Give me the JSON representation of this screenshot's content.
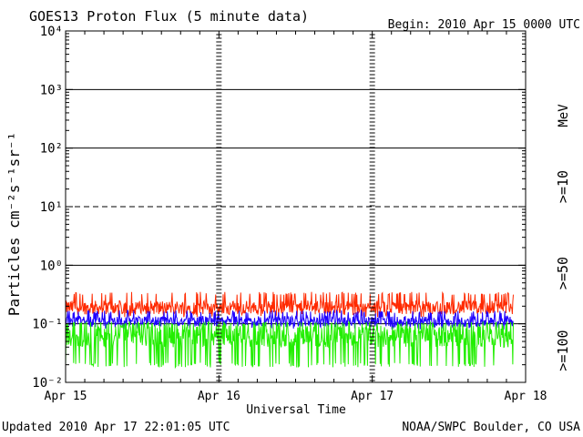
{
  "chart_data": {
    "type": "line",
    "title": "GOES13 Proton Flux (5 minute data)",
    "begin_label": "Begin: 2010 Apr 15 0000 UTC",
    "xlabel": "Universal Time",
    "ylabel": "Particles cm⁻²s⁻¹sr⁻¹",
    "y_scale": "log",
    "ylim": [
      0.01,
      10000
    ],
    "x_ticks": [
      "Apr 15",
      "Apr 16",
      "Apr 17",
      "Apr 18"
    ],
    "y_ticks": [
      "10⁻²",
      "10⁻¹",
      "10⁰",
      "10¹",
      "10²",
      "10³",
      "10⁴"
    ],
    "x_range_days": [
      0,
      3
    ],
    "data_end_day": 2.92,
    "threshold_lines": [
      {
        "value": 10,
        "style": "dashed"
      },
      {
        "value": 1000,
        "style": "solid"
      },
      {
        "value": 100,
        "style": "solid"
      },
      {
        "value": 1,
        "style": "solid"
      },
      {
        "value": 0.1,
        "style": "solid"
      }
    ],
    "series": [
      {
        "name": ">=10",
        "color": "#ff2a00",
        "mean": 0.19,
        "min": 0.13,
        "max": 0.35
      },
      {
        "name": ">=50",
        "color": "#1e00ff",
        "mean": 0.11,
        "min": 0.08,
        "max": 0.17
      },
      {
        "name": ">=100",
        "color": "#22ee00",
        "mean": 0.065,
        "min": 0.018,
        "max": 0.11
      }
    ],
    "series_unit": "MeV",
    "grid": false,
    "legend": "right"
  },
  "footer": {
    "updated": "Updated 2010 Apr 17 22:01:05 UTC",
    "source": "NOAA/SWPC Boulder, CO USA"
  }
}
